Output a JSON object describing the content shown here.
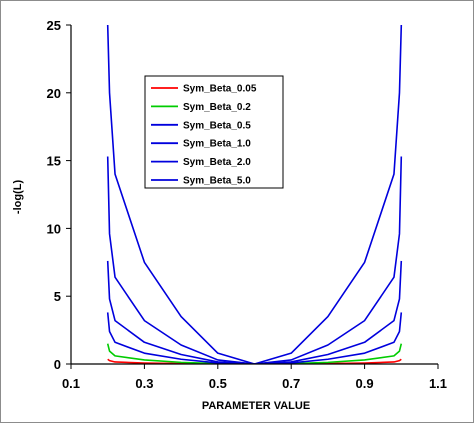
{
  "chart_data": {
    "type": "line",
    "xlabel": "PARAMETER VALUE",
    "ylabel": "-log(L)",
    "xlim": [
      0.1,
      1.1
    ],
    "ylim": [
      0,
      25
    ],
    "x_ticks": [
      "0.1",
      "0.3",
      "0.5",
      "0.7",
      "0.9",
      "1.1"
    ],
    "y_ticks": [
      "0",
      "5",
      "10",
      "15",
      "20",
      "25"
    ],
    "grid": false,
    "legend_position": "upper-left-inside",
    "series": [
      {
        "name": "Sym_Beta_0.05",
        "color": "#ff0000",
        "x": [
          0.2,
          0.205,
          0.22,
          0.3,
          0.4,
          0.5,
          0.6,
          0.7,
          0.8,
          0.9,
          0.98,
          0.995,
          1.0
        ],
        "y": [
          0.35,
          0.25,
          0.15,
          0.07,
          0.03,
          0.01,
          0.0,
          0.01,
          0.03,
          0.07,
          0.15,
          0.25,
          0.35
        ]
      },
      {
        "name": "Sym_Beta_0.2",
        "color": "#00cc00",
        "x": [
          0.2,
          0.205,
          0.22,
          0.3,
          0.4,
          0.5,
          0.6,
          0.7,
          0.8,
          0.9,
          0.98,
          0.995,
          1.0
        ],
        "y": [
          1.5,
          0.95,
          0.6,
          0.3,
          0.12,
          0.03,
          0.0,
          0.03,
          0.12,
          0.3,
          0.6,
          0.95,
          1.5
        ]
      },
      {
        "name": "Sym_Beta_0.5",
        "color": "#0000dd",
        "x": [
          0.2,
          0.205,
          0.22,
          0.3,
          0.4,
          0.5,
          0.6,
          0.7,
          0.8,
          0.9,
          0.98,
          0.995,
          1.0
        ],
        "y": [
          3.8,
          2.4,
          1.6,
          0.8,
          0.35,
          0.08,
          0.0,
          0.08,
          0.35,
          0.8,
          1.6,
          2.4,
          3.8
        ]
      },
      {
        "name": "Sym_Beta_1.0",
        "color": "#0000dd",
        "x": [
          0.2,
          0.205,
          0.22,
          0.3,
          0.4,
          0.5,
          0.6,
          0.7,
          0.8,
          0.9,
          0.98,
          0.995,
          1.0
        ],
        "y": [
          7.6,
          4.8,
          3.2,
          1.6,
          0.7,
          0.15,
          0.0,
          0.15,
          0.7,
          1.6,
          3.2,
          4.8,
          7.6
        ]
      },
      {
        "name": "Sym_Beta_2.0",
        "color": "#0000dd",
        "x": [
          0.2,
          0.205,
          0.22,
          0.3,
          0.4,
          0.5,
          0.6,
          0.7,
          0.8,
          0.9,
          0.98,
          0.995,
          1.0
        ],
        "y": [
          15.3,
          9.6,
          6.4,
          3.2,
          1.4,
          0.3,
          0.0,
          0.3,
          1.4,
          3.2,
          6.4,
          9.6,
          15.3
        ]
      },
      {
        "name": "Sym_Beta_5.0",
        "color": "#0000dd",
        "x": [
          0.2,
          0.205,
          0.22,
          0.3,
          0.4,
          0.5,
          0.6,
          0.7,
          0.8,
          0.9,
          0.98,
          0.995,
          1.0
        ],
        "y": [
          25,
          20,
          14,
          7.5,
          3.5,
          0.8,
          0.0,
          0.8,
          3.5,
          7.5,
          14,
          20,
          25
        ]
      }
    ]
  }
}
